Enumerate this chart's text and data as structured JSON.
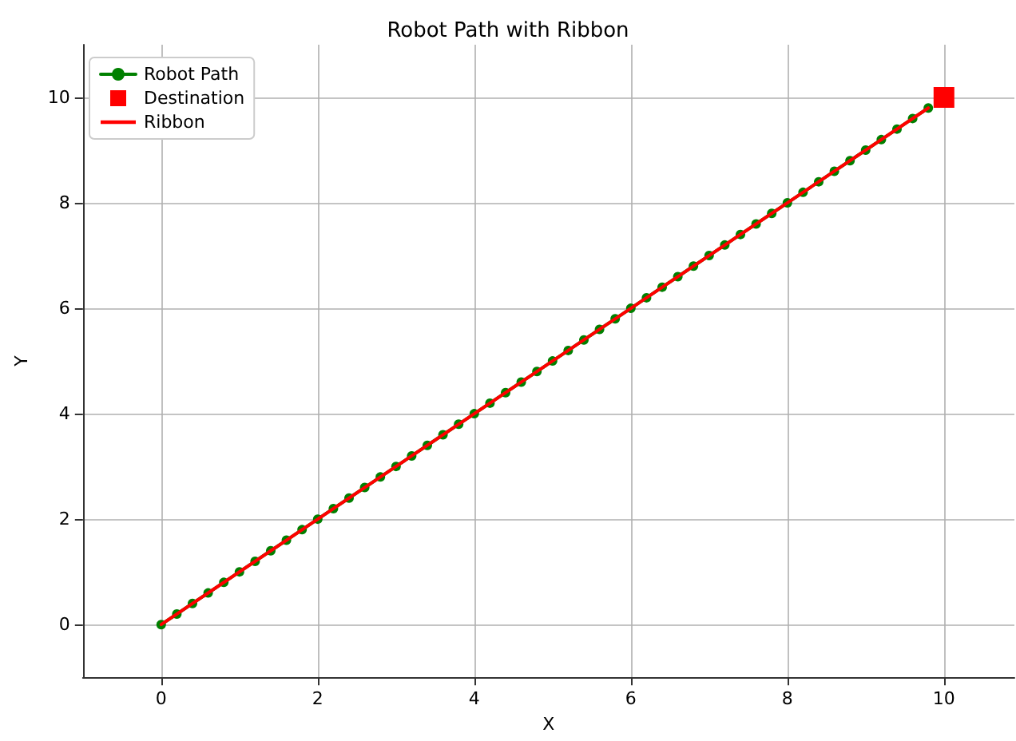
{
  "chart_data": {
    "type": "line",
    "title": "Robot Path with Ribbon",
    "xlabel": "X",
    "ylabel": "Y",
    "xlim": [
      -1,
      10.9
    ],
    "ylim": [
      -1,
      11
    ],
    "xticks": [
      0,
      2,
      4,
      6,
      8,
      10
    ],
    "yticks": [
      0,
      2,
      4,
      6,
      8,
      10
    ],
    "grid": true,
    "legend": "top left",
    "series": [
      {
        "name": "Robot Path",
        "type": "line",
        "marker": "circle",
        "color": "#008000",
        "x": [
          0,
          0.2,
          0.4,
          0.6,
          0.8,
          1,
          1.2,
          1.4,
          1.6,
          1.8,
          2,
          2.2,
          2.4,
          2.6,
          2.8,
          3,
          3.2,
          3.4,
          3.6,
          3.8,
          4,
          4.2,
          4.4,
          4.6,
          4.8,
          5,
          5.2,
          5.4,
          5.6,
          5.8,
          6,
          6.2,
          6.4,
          6.6,
          6.8,
          7,
          7.2,
          7.4,
          7.6,
          7.8,
          8,
          8.2,
          8.4,
          8.6,
          8.8,
          9,
          9.2,
          9.4,
          9.6,
          9.8
        ],
        "values": [
          0,
          0.2,
          0.4,
          0.6,
          0.8,
          1,
          1.2,
          1.4,
          1.6,
          1.8,
          2,
          2.2,
          2.4,
          2.6,
          2.8,
          3,
          3.2,
          3.4,
          3.6,
          3.8,
          4,
          4.2,
          4.4,
          4.6,
          4.8,
          5,
          5.2,
          5.4,
          5.6,
          5.8,
          6,
          6.2,
          6.4,
          6.6,
          6.8,
          7,
          7.2,
          7.4,
          7.6,
          7.8,
          8,
          8.2,
          8.4,
          8.6,
          8.8,
          9,
          9.2,
          9.4,
          9.6,
          9.8
        ]
      },
      {
        "name": "Destination",
        "type": "scatter",
        "marker": "square",
        "color": "#ff0000",
        "x": [
          10
        ],
        "values": [
          10
        ]
      },
      {
        "name": "Ribbon",
        "type": "line",
        "marker": "none",
        "color": "#ff0000",
        "x": [
          0,
          9.8
        ],
        "values": [
          0,
          9.8
        ]
      }
    ]
  }
}
